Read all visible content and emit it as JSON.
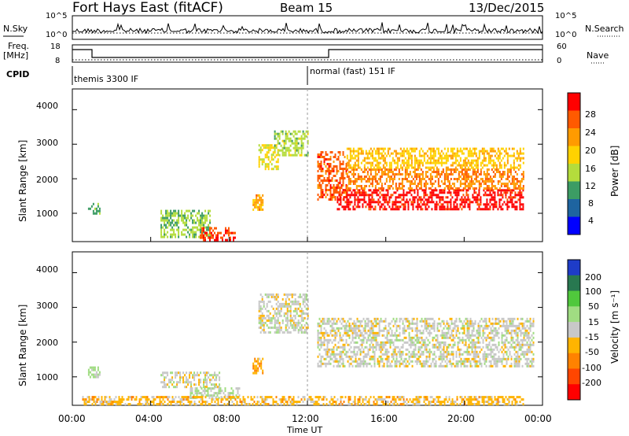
{
  "header": {
    "station": "Fort Hays East (fitACF)",
    "beam": "Beam 15",
    "date": "13/Dec/2015"
  },
  "params": {
    "nsky_label": "N.Sky",
    "nsearch_label": "N.Search",
    "nsky_ticks": [
      "10^5",
      "10^0"
    ],
    "nsearch_ticks": [
      "10^5",
      "10^0"
    ],
    "freq_label_1": "Freq.",
    "freq_label_2": "[MHz]",
    "freq_ticks": [
      "18",
      "8"
    ],
    "nave_label": "Nave",
    "nave_ticks": [
      "60",
      "0"
    ],
    "cpid_label": "CPID",
    "cpid_modes": [
      "themis 3300 IF",
      "normal (fast) 151 IF"
    ]
  },
  "power_panel": {
    "ylabel": "Slant Range [km]",
    "yticks": [
      "4000",
      "3000",
      "2000",
      "1000"
    ],
    "cbar_label": "Power [dB]",
    "cbar_ticks": [
      "28",
      "24",
      "20",
      "16",
      "12",
      "8",
      "4"
    ],
    "cbar_colors": [
      "#ff0000",
      "#ff5a00",
      "#ff9b00",
      "#ffd200",
      "#b4dc3c",
      "#3c9c64",
      "#1e64a0",
      "#0000ff"
    ]
  },
  "velocity_panel": {
    "ylabel": "Slant Range [km]",
    "yticks": [
      "4000",
      "3000",
      "2000",
      "1000"
    ],
    "cbar_label": "Velocity [m s⁻¹]",
    "cbar_ticks": [
      "200",
      "100",
      "50",
      "15",
      "-15",
      "-50",
      "-100",
      "-200"
    ],
    "cbar_colors": [
      "#1e3cc8",
      "#287850",
      "#50c83c",
      "#a0dc82",
      "#c8c8c8",
      "#ffb400",
      "#ff8200",
      "#ff4600",
      "#ff0000"
    ]
  },
  "xaxis": {
    "label": "Time UT",
    "ticks": [
      "00:00",
      "04:00",
      "08:00",
      "12:00",
      "16:00",
      "20:00",
      "00:00"
    ]
  },
  "chart_data": [
    {
      "type": "heatmap",
      "title": "Fort Hays East (fitACF)  Beam 15  13/Dec/2015",
      "xlabel": "Time UT",
      "ylabel": "Slant Range [km]",
      "colorbar": "Power [dB]",
      "xlim_hours": [
        0,
        24
      ],
      "ylim_km": [
        180,
        4600
      ],
      "clim": [
        0,
        30
      ],
      "regions": [
        {
          "t": [
            0.8,
            1.4
          ],
          "r": [
            1000,
            1300
          ],
          "v": 10
        },
        {
          "t": [
            4.5,
            7.0
          ],
          "r": [
            300,
            1100
          ],
          "v": 12
        },
        {
          "t": [
            6.5,
            8.3
          ],
          "r": [
            250,
            600
          ],
          "v": 26
        },
        {
          "t": [
            9.2,
            9.7
          ],
          "r": [
            1100,
            1550
          ],
          "v": 20
        },
        {
          "t": [
            9.5,
            10.5
          ],
          "r": [
            2300,
            3000
          ],
          "v": 16
        },
        {
          "t": [
            10.3,
            12.0
          ],
          "r": [
            2700,
            3400
          ],
          "v": 13
        },
        {
          "t": [
            12.5,
            14.0
          ],
          "r": [
            1400,
            2800
          ],
          "v": 24
        },
        {
          "t": [
            13.5,
            23.0
          ],
          "r": [
            1150,
            1700
          ],
          "v": 28
        },
        {
          "t": [
            14.0,
            23.0
          ],
          "r": [
            1700,
            2300
          ],
          "v": 22
        },
        {
          "t": [
            14.0,
            23.0
          ],
          "r": [
            2300,
            2900
          ],
          "v": 18
        }
      ]
    },
    {
      "type": "heatmap",
      "title": "",
      "xlabel": "Time UT",
      "ylabel": "Slant Range [km]",
      "colorbar": "Velocity [m s⁻¹]",
      "xlim_hours": [
        0,
        24
      ],
      "ylim_km": [
        180,
        4600
      ],
      "clim": [
        -250,
        250
      ],
      "regions": [
        {
          "t": [
            0.8,
            1.4
          ],
          "r": [
            1000,
            1300
          ],
          "v": 40
        },
        {
          "t": [
            4.5,
            7.5
          ],
          "r": [
            700,
            1150
          ],
          "v": 0
        },
        {
          "t": [
            6.0,
            8.5
          ],
          "r": [
            400,
            700
          ],
          "v": 30
        },
        {
          "t": [
            9.2,
            9.7
          ],
          "r": [
            1100,
            1550
          ],
          "v": -70
        },
        {
          "t": [
            0.5,
            23.0
          ],
          "r": [
            180,
            450
          ],
          "v": -50
        },
        {
          "t": [
            9.5,
            12.0
          ],
          "r": [
            2300,
            3400
          ],
          "v": 0
        },
        {
          "t": [
            12.5,
            23.5
          ],
          "r": [
            1300,
            2700
          ],
          "v": 0
        }
      ]
    }
  ]
}
